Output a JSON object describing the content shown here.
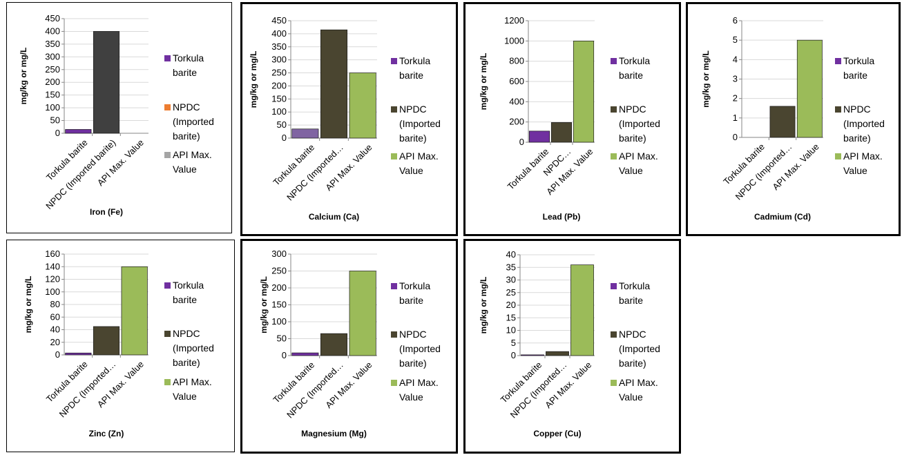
{
  "chart_data": [
    {
      "type": "bar",
      "title": "Iron (Fe)",
      "ylabel": "mg/kg or mg/L",
      "ylim": [
        0,
        450
      ],
      "ytick_step": 50,
      "categories": [
        "Torkula barite",
        "NPDC (Imported barite)",
        "API Max. Value"
      ],
      "category_labels": [
        "Torkula barite",
        "NPDC (Imported barite)",
        "API Max. Value"
      ],
      "values": [
        15,
        400,
        0
      ],
      "bar_colors": [
        "#7030a0",
        "#404040",
        "#a6a6a6"
      ],
      "legend": [
        {
          "label": "Torkula barite",
          "color": "#7030a0"
        },
        {
          "label": "NPDC (Imported barite)",
          "color": "#ed7d31"
        },
        {
          "label": "API Max. Value",
          "color": "#a5a5a5"
        }
      ]
    },
    {
      "type": "bar",
      "title": "Calcium (Ca)",
      "ylabel": "mg/kg or mg/L",
      "ylim": [
        0,
        450
      ],
      "ytick_step": 50,
      "categories": [
        "Torkula barite",
        "NPDC (Imported barite)",
        "API Max. Value"
      ],
      "category_labels": [
        "Torkula barite",
        "NPDC (Imported…",
        "API Max. Value"
      ],
      "values": [
        35,
        415,
        250
      ],
      "bar_colors": [
        "#8064a2",
        "#4a4530",
        "#9bbb59"
      ],
      "legend": [
        {
          "label": "Torkula barite",
          "color": "#7030a0"
        },
        {
          "label": "NPDC (Imported barite)",
          "color": "#4a4530"
        },
        {
          "label": "API Max. Value",
          "color": "#9bbb59"
        }
      ]
    },
    {
      "type": "bar",
      "title": "Lead (Pb)",
      "ylabel": "mg/kg or mg/L",
      "ylim": [
        0,
        1200
      ],
      "ytick_step": 200,
      "categories": [
        "Torkula barite",
        "NPDC (Imported barite)",
        "API Max. Value"
      ],
      "category_labels": [
        "Torkula barite",
        "NPDC…",
        "API Max. Value"
      ],
      "values": [
        110,
        195,
        1000
      ],
      "bar_colors": [
        "#7030a0",
        "#4a4530",
        "#9bbb59"
      ],
      "legend": [
        {
          "label": "Torkula barite",
          "color": "#7030a0"
        },
        {
          "label": "NPDC (Imported barite)",
          "color": "#4a4530"
        },
        {
          "label": "API Max. Value",
          "color": "#9bbb59"
        }
      ]
    },
    {
      "type": "bar",
      "title": "Cadmium (Cd)",
      "ylabel": "mg/kg or mg/L",
      "ylim": [
        0,
        6
      ],
      "ytick_step": 1,
      "categories": [
        "Torkula barite",
        "NPDC (Imported barite)",
        "API Max. Value"
      ],
      "category_labels": [
        "Torkula barite",
        "NPDC (Imported…",
        "API Max. Value"
      ],
      "values": [
        0,
        1.6,
        5
      ],
      "bar_colors": [
        "#7030a0",
        "#4a4530",
        "#9bbb59"
      ],
      "legend": [
        {
          "label": "Torkula barite",
          "color": "#7030a0"
        },
        {
          "label": "NPDC (Imported barite)",
          "color": "#4a4530"
        },
        {
          "label": "API Max. Value",
          "color": "#9bbb59"
        }
      ]
    },
    {
      "type": "bar",
      "title": "Zinc (Zn)",
      "ylabel": "mg/kg or mg/L",
      "ylim": [
        0,
        160
      ],
      "ytick_step": 20,
      "categories": [
        "Torkula barite",
        "NPDC (Imported barite)",
        "API Max. Value"
      ],
      "category_labels": [
        "Torkula barite",
        "NPDC (Imported…",
        "API Max. Value"
      ],
      "values": [
        3,
        45,
        140
      ],
      "bar_colors": [
        "#7030a0",
        "#4a4530",
        "#9bbb59"
      ],
      "legend": [
        {
          "label": "Torkula barite",
          "color": "#7030a0"
        },
        {
          "label": "NPDC (Imported barite)",
          "color": "#4a4530"
        },
        {
          "label": "API Max. Value",
          "color": "#9bbb59"
        }
      ]
    },
    {
      "type": "bar",
      "title": "Magnesium (Mg)",
      "ylabel": "mg/kg or mg/L",
      "ylim": [
        0,
        300
      ],
      "ytick_step": 50,
      "categories": [
        "Torkula barite",
        "NPDC (Imported barite)",
        "API Max. Value"
      ],
      "category_labels": [
        "Torkula barite",
        "NPDC (Imported…",
        "API Max. Value"
      ],
      "values": [
        8,
        65,
        250
      ],
      "bar_colors": [
        "#7030a0",
        "#4a4530",
        "#9bbb59"
      ],
      "legend": [
        {
          "label": "Torkula barite",
          "color": "#7030a0"
        },
        {
          "label": "NPDC (Imported barite)",
          "color": "#4a4530"
        },
        {
          "label": "API Max. Value",
          "color": "#9bbb59"
        }
      ]
    },
    {
      "type": "bar",
      "title": "Copper (Cu)",
      "ylabel": "mg/kg or mg/L",
      "ylim": [
        0,
        40
      ],
      "ytick_step": 5,
      "categories": [
        "Torkula barite",
        "NPDC (Imported barite)",
        "API Max. Value"
      ],
      "category_labels": [
        "Torkula barite",
        "NPDC (Imported…",
        "API Max. Value"
      ],
      "values": [
        0.3,
        1.6,
        36
      ],
      "bar_colors": [
        "#7030a0",
        "#4a4530",
        "#9bbb59"
      ],
      "legend": [
        {
          "label": "Torkula barite",
          "color": "#7030a0"
        },
        {
          "label": "NPDC (Imported barite)",
          "color": "#4a4530"
        },
        {
          "label": "API Max. Value",
          "color": "#9bbb59"
        }
      ]
    }
  ]
}
